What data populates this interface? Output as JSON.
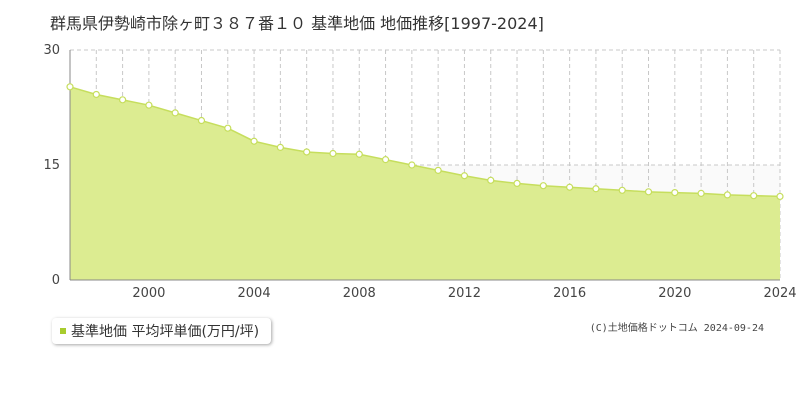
{
  "colors": {
    "fill": "#dcec91",
    "line": "#c6de5d",
    "marker_fill": "#ffffff",
    "grid": "#c8c8c8",
    "axis": "#888888",
    "legend_swatch": "#a8cc2e"
  },
  "footer": {
    "copyright": "(C)土地価格ドットコム 2024-09-24"
  },
  "chart_data": {
    "type": "area",
    "title": "群馬県伊勢崎市除ヶ町３８７番１０ 基準地価 地価推移[1997-2024]",
    "xlabel": "",
    "ylabel": "",
    "xlim": [
      1997,
      2024
    ],
    "ylim": [
      0,
      30
    ],
    "x_ticks": [
      "2000",
      "2004",
      "2008",
      "2012",
      "2016",
      "2020",
      "2024"
    ],
    "y_ticks": [
      "0",
      "15",
      "30"
    ],
    "grid": true,
    "legend_position": "bottom-left",
    "series": [
      {
        "name": "基準地価 平均坪単価(万円/坪)",
        "x": [
          1997,
          1998,
          1999,
          2000,
          2001,
          2002,
          2003,
          2004,
          2005,
          2006,
          2007,
          2008,
          2009,
          2010,
          2011,
          2012,
          2013,
          2014,
          2015,
          2016,
          2017,
          2018,
          2019,
          2020,
          2021,
          2022,
          2023,
          2024
        ],
        "values": [
          25.2,
          24.2,
          23.5,
          22.8,
          21.8,
          20.8,
          19.8,
          18.1,
          17.3,
          16.7,
          16.5,
          16.4,
          15.7,
          15.0,
          14.3,
          13.6,
          13.0,
          12.6,
          12.3,
          12.1,
          11.9,
          11.7,
          11.5,
          11.4,
          11.3,
          11.1,
          11.0,
          10.9
        ]
      }
    ]
  }
}
